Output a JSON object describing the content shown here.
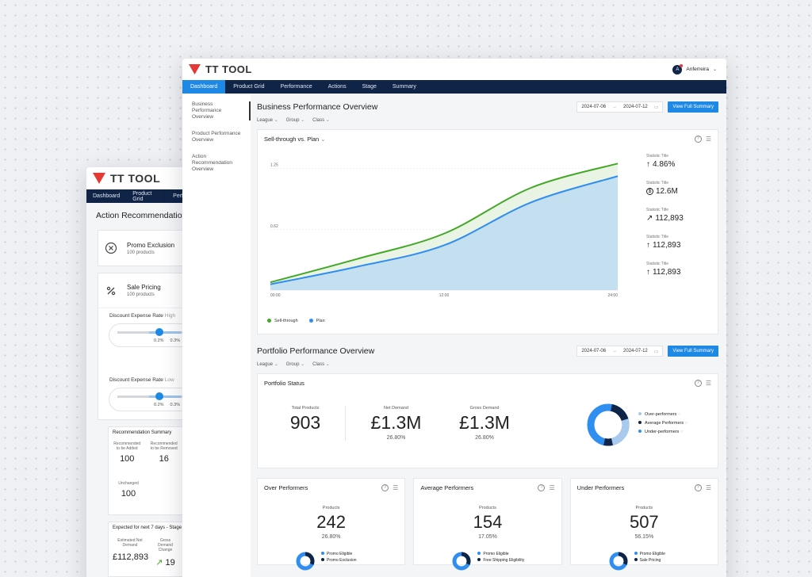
{
  "back": {
    "brand": "TT TOOL",
    "nav": [
      "Dashboard",
      "Product Grid",
      "Perf"
    ],
    "title": "Action Recommendation",
    "promo": {
      "title": "Promo Exclusion",
      "sub": "100 products"
    },
    "sale": {
      "title": "Sale Pricing",
      "sub": "100 products"
    },
    "slider1": {
      "label": "Discount Expense Rate",
      "hint": "High",
      "ticks": [
        "0.2%",
        "0.3%"
      ],
      "level_pct": 52
    },
    "slider2": {
      "label": "Discount Expense Rate",
      "hint": "Low",
      "ticks": [
        "0.2%",
        "0.3%"
      ],
      "level_pct": 52
    },
    "summary": {
      "title": "Recommendation Summary",
      "a_label": "Recommended to be Added",
      "a_value": "100",
      "b_label": "Recommended to be Removed",
      "b_value": "16",
      "c_label": "Unchanged",
      "c_value": "100"
    },
    "expected": {
      "title": "Expected for next 7 days - Stage",
      "a_label": "Estimated Net Demand",
      "a_value": "£112,893",
      "b_label": "Gross Demand Change",
      "b_value": "19"
    }
  },
  "front": {
    "brand": "TT TOOL",
    "user": {
      "initial": "A",
      "name": "Anferreira"
    },
    "nav": [
      "Dashboard",
      "Product Grid",
      "Performance",
      "Actions",
      "Stage",
      "Summary"
    ],
    "side": [
      "Business Performance Overview",
      "Product Performance Overview",
      "Action Recommendation Overview"
    ],
    "business": {
      "title": "Business Performance Overview",
      "date_from": "2024-07-06",
      "date_to": "2024-07-12",
      "button": "View Full Summary",
      "filters": [
        "League",
        "Group",
        "Class"
      ],
      "chart_title": "Sell-through vs. Plan",
      "stats": [
        {
          "label": "Statistic Title",
          "value": "4.86%",
          "icon": "arrow-up-icon"
        },
        {
          "label": "Statistic Title",
          "value": "12.6M",
          "icon": "dollar-icon"
        },
        {
          "label": "Statistic Title",
          "value": "112,893",
          "icon": "trend-icon"
        },
        {
          "label": "Statistic Title",
          "value": "112,893",
          "icon": "arrow-up-icon"
        },
        {
          "label": "Statistic Title",
          "value": "112,893",
          "icon": "arrow-up-icon"
        }
      ]
    },
    "portfolio": {
      "title": "Portfolio Performance Overview",
      "date_from": "2024-07-06",
      "date_to": "2024-07-12",
      "button": "View Full Summary",
      "filters": [
        "League",
        "Group",
        "Class"
      ],
      "status_title": "Portfolio Status",
      "kpis": [
        {
          "label": "Total Products",
          "value": "903",
          "sub": ""
        },
        {
          "label": "Net Demand",
          "value": "£1.3M",
          "sub": "26.80%"
        },
        {
          "label": "Gross Demand",
          "value": "£1.3M",
          "sub": "26.80%"
        }
      ],
      "legend": [
        "Over-performers",
        "Average Performers",
        "Under-performers"
      ]
    },
    "performers": [
      {
        "title": "Over Performers",
        "label": "Products",
        "value": "242",
        "sub": "26.80%",
        "legend": [
          "Promo Eligible",
          "Promo Exclusion"
        ]
      },
      {
        "title": "Average Performers",
        "label": "Products",
        "value": "154",
        "sub": "17.05%",
        "legend": [
          "Promo Eligible",
          "Free Shipping Eligibility"
        ]
      },
      {
        "title": "Under Performers",
        "label": "Products",
        "value": "507",
        "sub": "56.15%",
        "legend": [
          "Promo Eligible",
          "Sale Pricing"
        ]
      }
    ]
  },
  "colors": {
    "navy": "#0f2447",
    "accent": "#1e88e5",
    "green": "#43a827",
    "red": "#e53935"
  },
  "chart_data": {
    "type": "area",
    "title": "Sell-through vs. Plan",
    "x": [
      "00:00",
      "06:00",
      "12:00",
      "18:00",
      "24:00"
    ],
    "x_ticks": [
      "00:00",
      "12:00",
      "24:00"
    ],
    "y_ticks": [
      "0.62",
      "1.25"
    ],
    "ylim": [
      0,
      1.4
    ],
    "series": [
      {
        "name": "Sell-through",
        "color": "#43a827",
        "values": [
          0.08,
          0.32,
          0.58,
          1.05,
          1.3
        ]
      },
      {
        "name": "Plan",
        "color": "#2f8ef0",
        "values": [
          0.06,
          0.24,
          0.46,
          0.9,
          1.17
        ]
      }
    ],
    "legend": "bottom-left"
  }
}
